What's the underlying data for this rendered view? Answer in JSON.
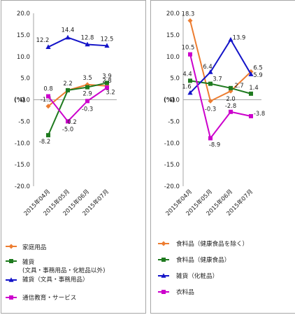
{
  "chart_data": [
    {
      "type": "line",
      "ylabel": "(%)",
      "ylim": [
        -20,
        20
      ],
      "yticks": [
        "20.0",
        "15.0",
        "10.0",
        "5.0",
        "0.0",
        "-5.0",
        "-10.0",
        "-15.0",
        "-20.0"
      ],
      "ytick_values": [
        20,
        15,
        10,
        5,
        0,
        -5,
        -10,
        -15,
        -20
      ],
      "categories": [
        "2015年04月",
        "2015年05月",
        "2015年06月",
        "2015年07月"
      ],
      "series": [
        {
          "name": "家庭用品",
          "color": "#ed7d31",
          "marker": "diamond",
          "values": [
            -1.5,
            2.2,
            3.5,
            3.2
          ],
          "labels": [
            "-1.5",
            "2.2",
            "3.5",
            "3.2"
          ]
        },
        {
          "name": "雑貨\n(文具・事務用品・化粧品以外)",
          "color": "#1f7a1f",
          "marker": "square",
          "values": [
            -8.2,
            2.2,
            2.9,
            3.9
          ],
          "labels": [
            "-8.2",
            "",
            "2.9",
            "3.9"
          ]
        },
        {
          "name": "雑貨（文具・事務用品）",
          "color": "#1414c8",
          "marker": "triangle",
          "values": [
            12.2,
            14.4,
            12.8,
            12.5
          ],
          "labels": [
            "12.2",
            "14.4",
            "12.8",
            "12.5"
          ]
        },
        {
          "name": "通信教育・サービス",
          "color": "#cc00cc",
          "marker": "square",
          "values": [
            0.8,
            -5.0,
            -0.3,
            2.8
          ],
          "labels": [
            "0.8",
            "-5.0",
            "-0.3",
            "2.8"
          ]
        }
      ],
      "extra_labels": [
        {
          "text": "0.2"
        }
      ]
    },
    {
      "type": "line",
      "ylabel": "(%)",
      "ylim": [
        -20,
        20
      ],
      "yticks": [
        "20.0",
        "15.0",
        "10.0",
        "5.0",
        "0.0",
        "-5.0",
        "-10.0",
        "-15.0",
        "-20.0"
      ],
      "ytick_values": [
        20,
        15,
        10,
        5,
        0,
        -5,
        -10,
        -15,
        -20
      ],
      "categories": [
        "2015年04月",
        "2015年05月",
        "2015年06月",
        "2015年07月"
      ],
      "series": [
        {
          "name": "食料品（健康食品を除く）",
          "color": "#ed7d31",
          "marker": "diamond",
          "values": [
            18.3,
            -0.3,
            2.0,
            6.5
          ],
          "labels": [
            "18.3",
            "-0.3",
            "2.0",
            "6.5"
          ]
        },
        {
          "name": "食料品（健康食品）",
          "color": "#1f7a1f",
          "marker": "square",
          "values": [
            4.4,
            3.7,
            2.7,
            1.4
          ],
          "labels": [
            "4.4",
            "3.7",
            "2.7",
            "1.4"
          ]
        },
        {
          "name": "雑貨（化粧品）",
          "color": "#1414c8",
          "marker": "triangle",
          "values": [
            1.6,
            6.4,
            13.9,
            5.9
          ],
          "labels": [
            "1.6",
            "6.4",
            "13.9",
            "5.9"
          ]
        },
        {
          "name": "衣料品",
          "color": "#cc00cc",
          "marker": "square",
          "values": [
            10.5,
            -8.9,
            -2.8,
            -3.8
          ],
          "labels": [
            "10.5",
            "-8.9",
            "-2.8",
            "-3.8"
          ]
        }
      ]
    }
  ]
}
